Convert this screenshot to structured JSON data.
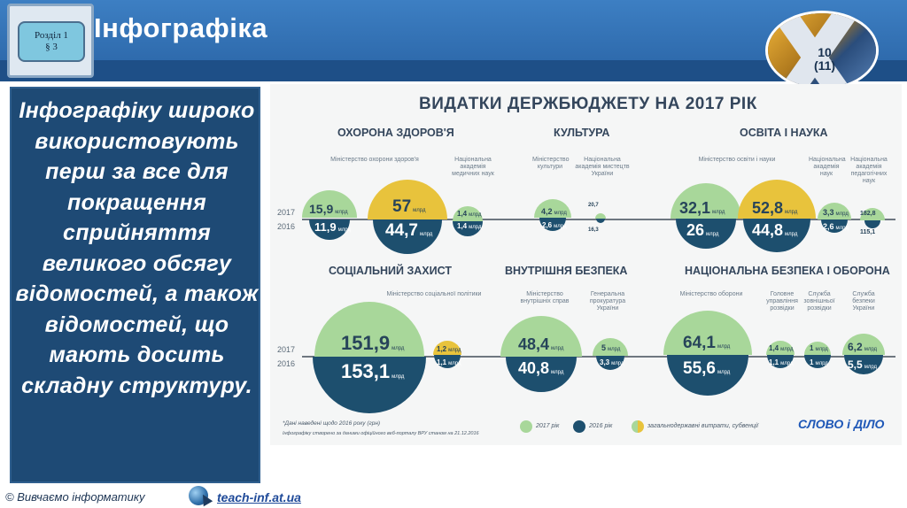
{
  "header": {
    "title": "Інфографіка",
    "section_line1": "Розділ 1",
    "section_line2": "§ 3",
    "grade_line1": "10",
    "grade_line2": "(11)"
  },
  "text_block": "Інфографіку широко використовують перш за все для покращення сприйняття великого обсягу відомостей, а також відомостей, що мають досить складну структуру.",
  "infographic": {
    "title": "ВИДАТКИ ДЕРЖБЮДЖЕТУ НА 2017 РІК",
    "year_2017": "2017",
    "year_2016": "2016",
    "unit": "млрд",
    "sections": {
      "health": "ОХОРОНА ЗДОРОВ'Я",
      "culture": "КУЛЬТУРА",
      "education": "ОСВІТА І НАУКА",
      "social": "СОЦІАЛЬНИЙ ЗАХИСТ",
      "security": "ВНУТРІШНЯ БЕЗПЕКА",
      "defense": "НАЦІОНАЛЬНА БЕЗПЕКА І ОБОРОНА"
    },
    "labels": {
      "health_ministry": "Міністерство охорони здоров'я",
      "health_academy": "Національна академія медичних наук",
      "culture_ministry": "Міністерство культури",
      "culture_academy": "Національна академія мистецтв України",
      "edu_ministry": "Міністерство освіти і науки",
      "edu_academy": "Національна академія наук",
      "edu_ped": "Національна академія педагогічних наук",
      "social_ministry": "Міністерство соціальної політики",
      "sec_ministry": "Міністерство внутрішніх справ",
      "sec_prosecutor": "Генеральна прокуратура України",
      "def_ministry": "Міністерство оборони",
      "def_intel": "Головне управління розвідки",
      "def_foreign": "Служба зовнішньої розвідки",
      "def_sbu": "Служба безпеки України"
    },
    "values": {
      "health_ministry_2017": "15,9",
      "health_ministry_2016": "11,9",
      "health_total_2017": "57",
      "health_total_2016": "44,7",
      "health_academy_2017": "1,4",
      "health_academy_2016": "1,4",
      "culture_ministry_2017": "4,2",
      "culture_ministry_2016": "2,6",
      "culture_academy_2017": "20,7",
      "culture_academy_2016": "16,3",
      "edu_ministry_2017": "32,1",
      "edu_ministry_2016": "26",
      "edu_total_2017": "52,8",
      "edu_total_2016": "44,8",
      "edu_academy_2017": "3,3",
      "edu_academy_2016": "2,6",
      "edu_ped_2017": "182,8",
      "edu_ped_2016": "115,1",
      "social_ministry_2017": "151,9",
      "social_ministry_2016": "153,1",
      "social_other_2017": "1,2",
      "social_other_2016": "1,1",
      "sec_ministry_2017": "48,4",
      "sec_ministry_2016": "40,8",
      "sec_prosecutor_2017": "5",
      "sec_prosecutor_2016": "3,3",
      "def_ministry_2017": "64,1",
      "def_ministry_2016": "55,6",
      "def_intel_2017": "1,4",
      "def_intel_2016": "1,1",
      "def_foreign_2017": "1",
      "def_foreign_2016": "1",
      "def_sbu_2017": "6,2",
      "def_sbu_2016": "5,5"
    },
    "footnote1": "*Дані наведені щодо 2016 року (грн)",
    "footnote2": "Інфографіку створено за даними офіційного веб-порталу ВРУ станом на 21.12.2016",
    "legend": {
      "y2017": "2017 рік",
      "y2016": "2016 рік",
      "general": "загальнодержавні витрати, субвенції"
    },
    "brand": "СЛОВО і ДІЛО",
    "colors": {
      "y2017": "#a8d79a",
      "y2016": "#1d4f6e",
      "general": "#e8c33c"
    }
  },
  "footer": {
    "left_text": "© Вивчаємо інформатику",
    "link": "teach-inf.at.ua"
  }
}
